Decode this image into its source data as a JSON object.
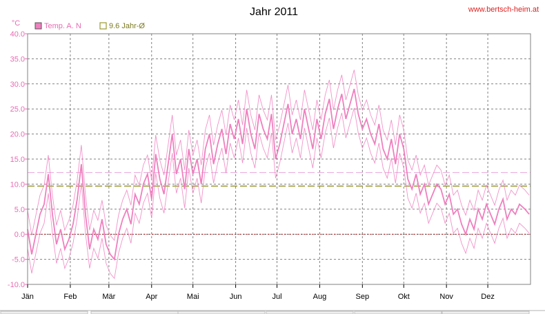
{
  "window": {
    "url_label": "www.bertsch-heim.at"
  },
  "colors": {
    "temperature": "#ef7fbf",
    "mean_line": "#9a9a2e",
    "pink_dash": "#e8a4dc",
    "zero_line": "#a22222",
    "axis_pink": "#e76bb3",
    "url_red": "#dd2020",
    "frame": "#808080"
  },
  "chart_data": {
    "type": "line",
    "title": "Jahr 2011",
    "ylabel": "°C",
    "xlabel": "",
    "ylim": [
      -10,
      40
    ],
    "yticks": [
      "40.0",
      "35.0",
      "30.0",
      "25.0",
      "20.0",
      "15.0",
      "10.0",
      "5.0",
      "0.0",
      "-5.0",
      "-10.0"
    ],
    "months": [
      "Jän",
      "Feb",
      "Mär",
      "Apr",
      "Mai",
      "Jun",
      "Jul",
      "Aug",
      "Sep",
      "Okt",
      "Nov",
      "Dez"
    ],
    "legend": [
      {
        "name": "Temp. A. N",
        "swatch": "filled"
      },
      {
        "name": "9.6 Jahr-Ø",
        "swatch": "outline"
      }
    ],
    "reference_lines": [
      {
        "value": 9.6,
        "style": "dashed-olive"
      },
      {
        "value": 12.3,
        "style": "dashed-pink"
      },
      {
        "value": 0.0,
        "style": "dotted-red"
      }
    ],
    "series": [
      {
        "name": "Temp. A. N",
        "x_unit": "day-of-year",
        "points": [
          [
            1,
            1
          ],
          [
            4,
            -4
          ],
          [
            7,
            0
          ],
          [
            10,
            4
          ],
          [
            13,
            6
          ],
          [
            16,
            12
          ],
          [
            19,
            4
          ],
          [
            22,
            -2
          ],
          [
            25,
            1
          ],
          [
            28,
            -3
          ],
          [
            31,
            -1
          ],
          [
            34,
            2
          ],
          [
            37,
            7
          ],
          [
            40,
            14
          ],
          [
            43,
            4
          ],
          [
            46,
            -3
          ],
          [
            49,
            1
          ],
          [
            52,
            -1
          ],
          [
            55,
            3
          ],
          [
            58,
            -2
          ],
          [
            61,
            -4
          ],
          [
            64,
            -5
          ],
          [
            67,
            0
          ],
          [
            70,
            3
          ],
          [
            73,
            5
          ],
          [
            76,
            2
          ],
          [
            79,
            8
          ],
          [
            82,
            6
          ],
          [
            85,
            10
          ],
          [
            88,
            12
          ],
          [
            91,
            7
          ],
          [
            94,
            16
          ],
          [
            97,
            11
          ],
          [
            100,
            8
          ],
          [
            103,
            14
          ],
          [
            106,
            20
          ],
          [
            109,
            12
          ],
          [
            112,
            15
          ],
          [
            115,
            9
          ],
          [
            118,
            17
          ],
          [
            121,
            12
          ],
          [
            124,
            15
          ],
          [
            127,
            10
          ],
          [
            130,
            17
          ],
          [
            133,
            20
          ],
          [
            136,
            14
          ],
          [
            139,
            18
          ],
          [
            142,
            21
          ],
          [
            145,
            16
          ],
          [
            148,
            22
          ],
          [
            151,
            19
          ],
          [
            154,
            23
          ],
          [
            157,
            18
          ],
          [
            160,
            25
          ],
          [
            163,
            20
          ],
          [
            166,
            17
          ],
          [
            169,
            24
          ],
          [
            172,
            21
          ],
          [
            175,
            19
          ],
          [
            178,
            24
          ],
          [
            181,
            15
          ],
          [
            184,
            18
          ],
          [
            187,
            22
          ],
          [
            190,
            26
          ],
          [
            193,
            20
          ],
          [
            196,
            23
          ],
          [
            199,
            19
          ],
          [
            202,
            25
          ],
          [
            205,
            21
          ],
          [
            208,
            17
          ],
          [
            211,
            23
          ],
          [
            214,
            19
          ],
          [
            217,
            24
          ],
          [
            220,
            27
          ],
          [
            223,
            21
          ],
          [
            226,
            25
          ],
          [
            229,
            28
          ],
          [
            232,
            23
          ],
          [
            235,
            26
          ],
          [
            238,
            29
          ],
          [
            241,
            24
          ],
          [
            244,
            21
          ],
          [
            247,
            23
          ],
          [
            250,
            20
          ],
          [
            253,
            18
          ],
          [
            256,
            22
          ],
          [
            259,
            17
          ],
          [
            262,
            15
          ],
          [
            265,
            19
          ],
          [
            268,
            14
          ],
          [
            271,
            20
          ],
          [
            274,
            17
          ],
          [
            277,
            11
          ],
          [
            280,
            9
          ],
          [
            283,
            12
          ],
          [
            286,
            8
          ],
          [
            289,
            10
          ],
          [
            292,
            6
          ],
          [
            295,
            8
          ],
          [
            298,
            10
          ],
          [
            301,
            9
          ],
          [
            304,
            6
          ],
          [
            307,
            8
          ],
          [
            310,
            4
          ],
          [
            313,
            5
          ],
          [
            316,
            2
          ],
          [
            319,
            0
          ],
          [
            322,
            3
          ],
          [
            325,
            1
          ],
          [
            328,
            5
          ],
          [
            331,
            3
          ],
          [
            334,
            6
          ],
          [
            337,
            4
          ],
          [
            340,
            2
          ],
          [
            343,
            5
          ],
          [
            346,
            7
          ],
          [
            349,
            3
          ],
          [
            352,
            5
          ],
          [
            355,
            4
          ],
          [
            358,
            6
          ],
          [
            362,
            5
          ],
          [
            365,
            4
          ]
        ]
      }
    ]
  }
}
